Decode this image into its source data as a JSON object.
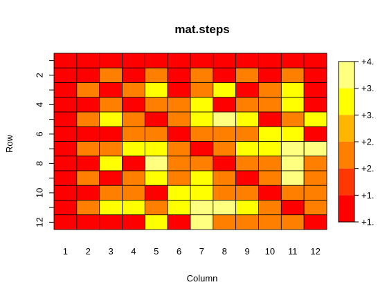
{
  "chart_data": {
    "type": "heatmap",
    "title": "mat.steps",
    "xlabel": "Column",
    "ylabel": "Row",
    "x_ticks": [
      "1",
      "2",
      "3",
      "4",
      "5",
      "6",
      "7",
      "8",
      "9",
      "10",
      "11",
      "12"
    ],
    "y_ticks": [
      "2",
      "4",
      "6",
      "8",
      "10",
      "12"
    ],
    "palette": [
      "#FF0000",
      "#FF3700",
      "#FF8000",
      "#FFB600",
      "#FFFF00",
      "#FFFF80"
    ],
    "legend_labels": [
      "+1.",
      "+1.",
      "+2.",
      "+2.",
      "+3.",
      "+3.",
      "+4."
    ],
    "matrix": [
      [
        0,
        0,
        0,
        0,
        0,
        0,
        0,
        0,
        0,
        0,
        0,
        0
      ],
      [
        0,
        0,
        2,
        0,
        2,
        0,
        2,
        0,
        2,
        0,
        2,
        0
      ],
      [
        0,
        2,
        0,
        2,
        4,
        0,
        2,
        4,
        0,
        2,
        4,
        0
      ],
      [
        0,
        0,
        2,
        0,
        2,
        2,
        4,
        0,
        2,
        2,
        4,
        0
      ],
      [
        0,
        2,
        4,
        2,
        0,
        2,
        4,
        5,
        4,
        0,
        2,
        4
      ],
      [
        0,
        0,
        0,
        2,
        2,
        0,
        2,
        2,
        2,
        4,
        4,
        0
      ],
      [
        0,
        2,
        2,
        4,
        4,
        2,
        0,
        2,
        4,
        4,
        5,
        5
      ],
      [
        0,
        0,
        4,
        0,
        5,
        2,
        2,
        0,
        2,
        2,
        5,
        2
      ],
      [
        0,
        2,
        0,
        2,
        4,
        2,
        4,
        2,
        0,
        2,
        5,
        2
      ],
      [
        0,
        0,
        2,
        2,
        0,
        4,
        4,
        2,
        2,
        0,
        2,
        2
      ],
      [
        0,
        2,
        4,
        4,
        2,
        4,
        5,
        5,
        4,
        2,
        0,
        2
      ],
      [
        0,
        0,
        0,
        0,
        4,
        0,
        5,
        2,
        2,
        2,
        2,
        0
      ]
    ]
  }
}
